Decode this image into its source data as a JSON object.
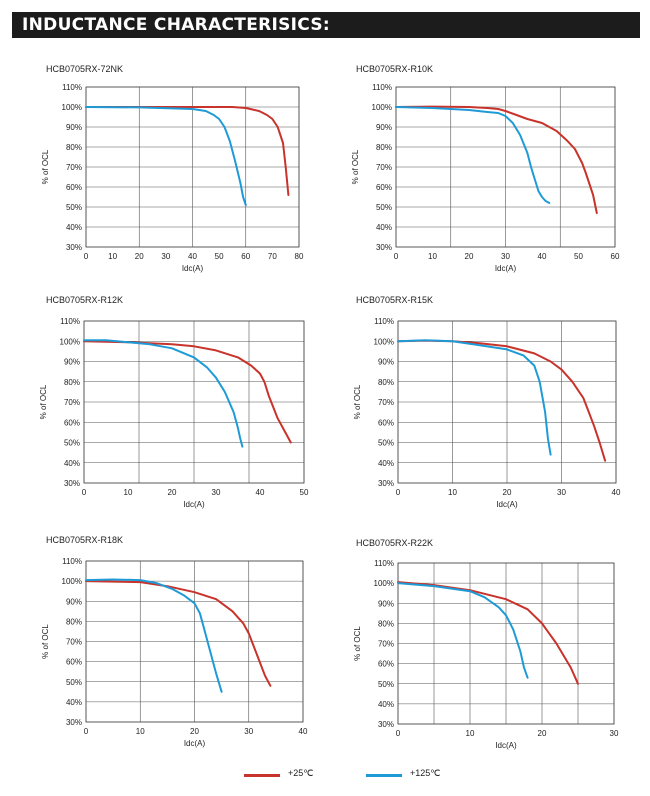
{
  "header": {
    "title": "INDUCTANCE CHARACTERISICS:"
  },
  "colors": {
    "series_25": "#c8332b",
    "series_125": "#1e9bd7",
    "grid": "#555555",
    "banner_bg": "#1c1c1c"
  },
  "legend": [
    {
      "label": "+25℃",
      "color": "#c8332b"
    },
    {
      "label": "+125℃",
      "color": "#1e9bd7"
    }
  ],
  "chart_data": [
    {
      "type": "line",
      "title": "HCB0705RX-72NK",
      "xlabel": "Idc(A)",
      "ylabel": "% of OCL",
      "xlim": [
        0,
        80
      ],
      "ylim": [
        30,
        110
      ],
      "xticks": [
        0,
        10,
        20,
        30,
        40,
        50,
        60,
        70,
        80
      ],
      "yticks": [
        30,
        40,
        50,
        60,
        70,
        80,
        90,
        100,
        110
      ],
      "xgrid": [
        0,
        20,
        40,
        60,
        80
      ],
      "series": [
        {
          "name": "+25℃",
          "x": [
            0,
            20,
            40,
            50,
            55,
            60,
            65,
            68,
            70,
            72,
            74,
            75,
            76
          ],
          "y": [
            100,
            100,
            100,
            100,
            100,
            99.5,
            98,
            96,
            94,
            90,
            82,
            70,
            56
          ]
        },
        {
          "name": "+125℃",
          "x": [
            0,
            20,
            40,
            45,
            48,
            50,
            52,
            54,
            56,
            58,
            59,
            60
          ],
          "y": [
            100,
            99.8,
            99,
            98,
            96,
            94,
            90,
            83,
            73,
            62,
            55,
            51
          ]
        }
      ]
    },
    {
      "type": "line",
      "title": "HCB0705RX-R10K",
      "xlabel": "Idc(A)",
      "ylabel": "% of OCL",
      "xlim": [
        0,
        60
      ],
      "ylim": [
        30,
        110
      ],
      "xticks": [
        0,
        10,
        20,
        30,
        40,
        50,
        60
      ],
      "yticks": [
        30,
        40,
        50,
        60,
        70,
        80,
        90,
        100,
        110
      ],
      "xgrid": [
        0,
        15,
        30,
        45,
        60
      ],
      "series": [
        {
          "name": "+25℃",
          "x": [
            0,
            10,
            20,
            25,
            28,
            30,
            33,
            36,
            40,
            44,
            47,
            49,
            51,
            52,
            54,
            55
          ],
          "y": [
            100,
            100.2,
            100,
            99.5,
            99,
            98,
            96,
            94,
            92,
            88,
            83,
            79,
            72,
            67,
            56,
            47
          ]
        },
        {
          "name": "+125℃",
          "x": [
            0,
            10,
            20,
            25,
            28,
            30,
            32,
            34,
            36,
            37,
            38,
            39,
            40,
            41,
            42
          ],
          "y": [
            100,
            99.5,
            98.5,
            97.5,
            97,
            95.5,
            92,
            86,
            77,
            70,
            64,
            58,
            55,
            53,
            52
          ]
        }
      ]
    },
    {
      "type": "line",
      "title": "HCB0705RX-R12K",
      "xlabel": "Idc(A)",
      "ylabel": "% of OCL",
      "xlim": [
        0,
        50
      ],
      "ylim": [
        30,
        110
      ],
      "xticks": [
        0,
        10,
        20,
        30,
        40,
        50
      ],
      "yticks": [
        30,
        40,
        50,
        60,
        70,
        80,
        90,
        100,
        110
      ],
      "xgrid": [
        0,
        12.5,
        25,
        37.5,
        50
      ],
      "series": [
        {
          "name": "+25℃",
          "x": [
            0,
            10,
            20,
            25,
            30,
            35,
            38,
            40,
            41,
            42,
            44,
            46,
            47
          ],
          "y": [
            100,
            99.5,
            98.5,
            97.5,
            95.5,
            92,
            88,
            84,
            80,
            73,
            62,
            54,
            50
          ]
        },
        {
          "name": "+125℃",
          "x": [
            0,
            5,
            10,
            15,
            20,
            25,
            28,
            30,
            32,
            33,
            34,
            35,
            35.5,
            36
          ],
          "y": [
            100.5,
            100.5,
            99.5,
            98.5,
            96.5,
            92,
            87,
            82,
            75,
            70,
            65,
            57,
            52,
            48
          ]
        }
      ]
    },
    {
      "type": "line",
      "title": "HCB0705RX-R15K",
      "xlabel": "Idc(A)",
      "ylabel": "% of OCL",
      "xlim": [
        0,
        40
      ],
      "ylim": [
        30,
        110
      ],
      "xticks": [
        0,
        10,
        20,
        30,
        40
      ],
      "yticks": [
        30,
        40,
        50,
        60,
        70,
        80,
        90,
        100,
        110
      ],
      "xgrid": [
        0,
        10,
        20,
        30,
        40
      ],
      "series": [
        {
          "name": "+25℃",
          "x": [
            0,
            5,
            10,
            15,
            20,
            25,
            28,
            30,
            32,
            34,
            35,
            36,
            37,
            38
          ],
          "y": [
            100,
            100.3,
            100,
            99,
            97.5,
            94,
            90,
            86,
            80,
            72,
            65,
            58,
            50,
            41
          ]
        },
        {
          "name": "+125℃",
          "x": [
            0,
            5,
            10,
            15,
            20,
            23,
            25,
            26,
            27,
            27.5,
            28
          ],
          "y": [
            100,
            100.5,
            100,
            98,
            96,
            93,
            88,
            80,
            65,
            52,
            44
          ]
        }
      ]
    },
    {
      "type": "line",
      "title": "HCB0705RX-R18K",
      "xlabel": "Idc(A)",
      "ylabel": "% of OCL",
      "xlim": [
        0,
        40
      ],
      "ylim": [
        30,
        110
      ],
      "xticks": [
        0,
        10,
        20,
        30,
        40
      ],
      "yticks": [
        30,
        40,
        50,
        60,
        70,
        80,
        90,
        100,
        110
      ],
      "xgrid": [
        0,
        10,
        20,
        30,
        40
      ],
      "series": [
        {
          "name": "+25℃",
          "x": [
            0,
            10,
            15,
            20,
            24,
            27,
            29,
            30,
            31,
            32,
            33,
            34
          ],
          "y": [
            100,
            99.5,
            97.5,
            94.5,
            91,
            85,
            79,
            74,
            67,
            60,
            53,
            48
          ]
        },
        {
          "name": "+125℃",
          "x": [
            0,
            5,
            10,
            13,
            16,
            18,
            20,
            21,
            22,
            23,
            24,
            25
          ],
          "y": [
            100.5,
            100.8,
            100.5,
            99,
            96,
            93,
            89,
            84,
            74,
            64,
            54,
            45
          ]
        }
      ]
    },
    {
      "type": "line",
      "title": "HCB0705RX-R22K",
      "xlabel": "Idc(A)",
      "ylabel": "% of OCL",
      "xlim": [
        0,
        30
      ],
      "ylim": [
        30,
        110
      ],
      "xticks": [
        0,
        10,
        20,
        30
      ],
      "yticks": [
        30,
        40,
        50,
        60,
        70,
        80,
        90,
        100,
        110
      ],
      "xgrid": [
        0,
        5,
        10,
        15,
        20,
        25,
        30
      ],
      "series": [
        {
          "name": "+25℃",
          "x": [
            0,
            5,
            10,
            15,
            18,
            20,
            22,
            24,
            25
          ],
          "y": [
            100.5,
            99,
            96.5,
            92,
            87,
            80,
            70,
            58,
            50
          ]
        },
        {
          "name": "+125℃",
          "x": [
            0,
            5,
            10,
            12,
            14,
            15,
            16,
            17,
            17.5,
            18
          ],
          "y": [
            100,
            98.5,
            96,
            93,
            88,
            84,
            77,
            66,
            58,
            53
          ]
        }
      ]
    }
  ]
}
